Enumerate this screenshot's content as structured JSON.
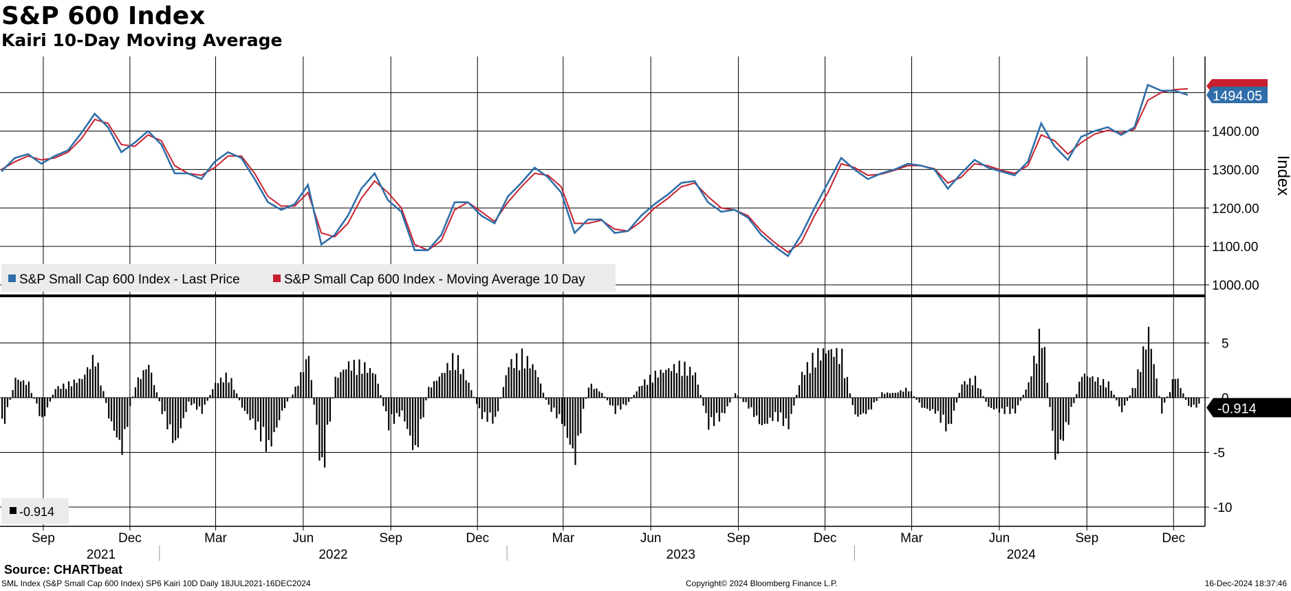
{
  "header": {
    "title": "S&P 600 Index",
    "subtitle": "Kairi 10-Day Moving Average"
  },
  "footer": {
    "source": "Source: CHARTbeat",
    "description": "SML Index (S&P Small Cap 600 Index) SP6 Kairi 10D  Daily 18JUL2021-16DEC2024",
    "copyright": "Copyright© 2024 Bloomberg Finance L.P.",
    "timestamp": "16-Dec-2024 18:37:46"
  },
  "colors": {
    "price": "#2f6ea8",
    "moving_average": "#c8202f",
    "kairi_bars": "#000000",
    "grid": "#000000",
    "legend_bg": "#ebebeb",
    "price_tag_bg": "#2f6ea8",
    "kairi_tag_bg": "#000000"
  },
  "chart_data": [
    {
      "type": "line",
      "ylabel": "Index",
      "ylim": [
        980,
        1560
      ],
      "yticks": [
        "1000.00",
        "1100.00",
        "1200.00",
        "1300.00",
        "1400.00"
      ],
      "last_value_label": "1494.05",
      "legend_position": "bottom-left",
      "grid": true,
      "x": [
        "2021-07-19",
        "2021-08-02",
        "2021-08-16",
        "2021-08-30",
        "2021-09-13",
        "2021-09-27",
        "2021-10-11",
        "2021-10-25",
        "2021-11-08",
        "2021-11-22",
        "2021-12-06",
        "2021-12-20",
        "2022-01-03",
        "2022-01-17",
        "2022-01-31",
        "2022-02-14",
        "2022-02-28",
        "2022-03-14",
        "2022-03-28",
        "2022-04-11",
        "2022-04-25",
        "2022-05-09",
        "2022-05-23",
        "2022-06-06",
        "2022-06-20",
        "2022-07-04",
        "2022-07-18",
        "2022-08-01",
        "2022-08-15",
        "2022-08-29",
        "2022-09-12",
        "2022-09-26",
        "2022-10-10",
        "2022-10-24",
        "2022-11-07",
        "2022-11-21",
        "2022-12-05",
        "2022-12-19",
        "2023-01-02",
        "2023-01-16",
        "2023-01-30",
        "2023-02-13",
        "2023-02-27",
        "2023-03-13",
        "2023-03-27",
        "2023-04-10",
        "2023-04-24",
        "2023-05-08",
        "2023-05-22",
        "2023-06-05",
        "2023-06-19",
        "2023-07-03",
        "2023-07-17",
        "2023-07-31",
        "2023-08-14",
        "2023-08-28",
        "2023-09-11",
        "2023-09-25",
        "2023-10-09",
        "2023-10-23",
        "2023-11-06",
        "2023-11-20",
        "2023-12-04",
        "2023-12-18",
        "2024-01-01",
        "2024-01-15",
        "2024-01-29",
        "2024-02-12",
        "2024-02-26",
        "2024-03-11",
        "2024-03-25",
        "2024-04-08",
        "2024-04-22",
        "2024-05-06",
        "2024-05-20",
        "2024-06-03",
        "2024-06-17",
        "2024-07-01",
        "2024-07-15",
        "2024-07-29",
        "2024-08-12",
        "2024-08-26",
        "2024-09-09",
        "2024-09-23",
        "2024-10-07",
        "2024-10-21",
        "2024-11-04",
        "2024-11-18",
        "2024-12-02",
        "2024-12-16"
      ],
      "series": [
        {
          "name": "S&P Small Cap 600 Index - Last Price",
          "values": [
            1295,
            1330,
            1340,
            1315,
            1335,
            1350,
            1395,
            1445,
            1410,
            1345,
            1370,
            1400,
            1365,
            1290,
            1290,
            1275,
            1320,
            1345,
            1330,
            1275,
            1215,
            1195,
            1210,
            1260,
            1105,
            1130,
            1180,
            1250,
            1290,
            1220,
            1190,
            1090,
            1090,
            1130,
            1215,
            1215,
            1180,
            1160,
            1230,
            1265,
            1305,
            1280,
            1240,
            1135,
            1170,
            1170,
            1135,
            1140,
            1180,
            1210,
            1235,
            1265,
            1270,
            1215,
            1190,
            1195,
            1175,
            1130,
            1100,
            1075,
            1130,
            1200,
            1265,
            1330,
            1300,
            1275,
            1290,
            1300,
            1315,
            1310,
            1300,
            1250,
            1290,
            1325,
            1305,
            1295,
            1285,
            1320,
            1420,
            1360,
            1325,
            1385,
            1400,
            1410,
            1390,
            1410,
            1520,
            1505,
            1505,
            1494.05
          ]
        },
        {
          "name": "S&P Small Cap 600 Index - Moving Average 10 Day",
          "values": [
            1300,
            1320,
            1335,
            1325,
            1330,
            1345,
            1380,
            1430,
            1420,
            1365,
            1360,
            1390,
            1375,
            1310,
            1290,
            1285,
            1305,
            1335,
            1335,
            1290,
            1230,
            1205,
            1205,
            1240,
            1135,
            1125,
            1160,
            1225,
            1270,
            1240,
            1200,
            1105,
            1090,
            1115,
            1195,
            1215,
            1190,
            1165,
            1215,
            1255,
            1290,
            1285,
            1255,
            1160,
            1160,
            1168,
            1145,
            1140,
            1165,
            1200,
            1225,
            1255,
            1265,
            1230,
            1200,
            1195,
            1180,
            1140,
            1110,
            1085,
            1110,
            1180,
            1240,
            1315,
            1305,
            1285,
            1288,
            1298,
            1310,
            1310,
            1302,
            1265,
            1280,
            1315,
            1310,
            1298,
            1290,
            1310,
            1390,
            1375,
            1340,
            1370,
            1392,
            1402,
            1395,
            1405,
            1480,
            1500,
            1508,
            1510
          ]
        }
      ]
    },
    {
      "type": "bar",
      "ylim": [
        -11.5,
        8.5
      ],
      "yticks": [
        "5",
        "0",
        "-5",
        "-10"
      ],
      "last_value_label": "-0.914",
      "legend_value": "-0.914",
      "grid": true,
      "x": [
        "2021-07-19",
        "2021-08-02",
        "2021-08-16",
        "2021-08-30",
        "2021-09-13",
        "2021-09-27",
        "2021-10-11",
        "2021-10-25",
        "2021-11-08",
        "2021-11-22",
        "2021-12-06",
        "2021-12-20",
        "2022-01-03",
        "2022-01-17",
        "2022-01-31",
        "2022-02-14",
        "2022-02-28",
        "2022-03-14",
        "2022-03-28",
        "2022-04-11",
        "2022-04-25",
        "2022-05-09",
        "2022-05-23",
        "2022-06-06",
        "2022-06-20",
        "2022-07-04",
        "2022-07-18",
        "2022-08-01",
        "2022-08-15",
        "2022-08-29",
        "2022-09-12",
        "2022-09-26",
        "2022-10-10",
        "2022-10-24",
        "2022-11-07",
        "2022-11-21",
        "2022-12-05",
        "2022-12-19",
        "2023-01-02",
        "2023-01-16",
        "2023-01-30",
        "2023-02-13",
        "2023-02-27",
        "2023-03-13",
        "2023-03-27",
        "2023-04-10",
        "2023-04-24",
        "2023-05-08",
        "2023-05-22",
        "2023-06-05",
        "2023-06-19",
        "2023-07-03",
        "2023-07-17",
        "2023-07-31",
        "2023-08-14",
        "2023-08-28",
        "2023-09-11",
        "2023-09-25",
        "2023-10-09",
        "2023-10-23",
        "2023-11-06",
        "2023-11-20",
        "2023-12-04",
        "2023-12-18",
        "2024-01-01",
        "2024-01-15",
        "2024-01-29",
        "2024-02-12",
        "2024-02-26",
        "2024-03-11",
        "2024-03-25",
        "2024-04-08",
        "2024-04-22",
        "2024-05-06",
        "2024-05-20",
        "2024-06-03",
        "2024-06-17",
        "2024-07-01",
        "2024-07-15",
        "2024-07-29",
        "2024-08-12",
        "2024-08-26",
        "2024-09-09",
        "2024-09-23",
        "2024-10-07",
        "2024-10-21",
        "2024-11-04",
        "2024-11-18",
        "2024-12-02",
        "2024-12-16"
      ],
      "series": [
        {
          "name": "Kairi 10D",
          "values": [
            -3.5,
            2,
            1.5,
            -2.5,
            1,
            1.5,
            2,
            4.5,
            -2,
            -5.5,
            1.5,
            3.5,
            -1.5,
            -5,
            -0.5,
            -1.5,
            1.5,
            2.5,
            -1,
            -3,
            -5.5,
            -1.5,
            1,
            4.5,
            -8.5,
            2,
            3.5,
            3.5,
            2.5,
            -3,
            -1.5,
            -6,
            1,
            2.5,
            4.5,
            1.5,
            -2,
            -2.5,
            3.5,
            4.5,
            3,
            -1,
            -2.5,
            -6.5,
            1.5,
            0.5,
            -1.5,
            -0.5,
            1.5,
            2.5,
            3,
            3.5,
            2.5,
            -3,
            -2,
            0.5,
            -1,
            -3,
            -2,
            -3,
            2.5,
            4.5,
            5,
            4.5,
            -2,
            -1.5,
            0.5,
            0.5,
            1,
            -1,
            -1.5,
            -3.5,
            1.5,
            2,
            -1,
            -1.5,
            -1.5,
            1.5,
            7.5,
            -6.5,
            -2.5,
            2.5,
            2,
            1.5,
            -1.5,
            1.5,
            7,
            -1.5,
            2.5,
            -0.914
          ]
        }
      ]
    }
  ],
  "axis": {
    "months": [
      "Sep",
      "Dec",
      "Mar",
      "Jun",
      "Sep",
      "Dec",
      "Mar",
      "Jun",
      "Sep",
      "Dec",
      "Mar",
      "Jun",
      "Sep",
      "Dec"
    ],
    "years": [
      "2021",
      "2022",
      "2023",
      "2024"
    ]
  }
}
